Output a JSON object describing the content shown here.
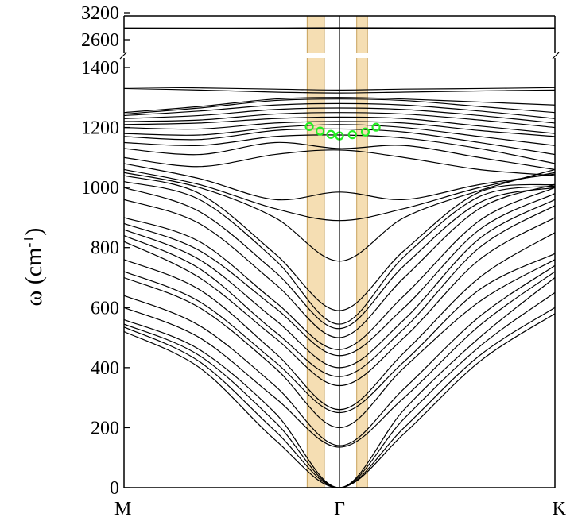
{
  "chart_data": {
    "type": "line",
    "title": "",
    "xlabel": "",
    "ylabel": "ω (cm-1)",
    "ylabel_parts": {
      "main": "ω (cm",
      "sup": "-1",
      "close": ")"
    },
    "x_ticks": [
      "M",
      "Γ",
      "K"
    ],
    "x_path_points": [
      {
        "label": "M",
        "k": 0.0
      },
      {
        "label": "Γ",
        "k": 1.0
      },
      {
        "label": "K",
        "k": 2.0
      }
    ],
    "ylim_lower": [
      0,
      1400
    ],
    "ylim_upper": [
      2600,
      3200
    ],
    "y_ticks_lower": [
      0,
      200,
      400,
      600,
      800,
      1000,
      1200,
      1400
    ],
    "y_ticks_upper": [
      2600,
      3200
    ],
    "y_tick_labels_lower": [
      "0",
      "200",
      "400",
      "600",
      "800",
      "1000",
      "1200",
      "1400"
    ],
    "y_tick_labels_upper": [
      "2600",
      "3200"
    ],
    "broken_axis": true,
    "highlight_bands_k": [
      [
        0.85,
        0.93
      ],
      [
        1.08,
        1.13
      ]
    ],
    "highlight_color": "#f5deb3",
    "band_color": "#000000",
    "marker_color": "#22ee22",
    "markers": [
      {
        "k": 0.86,
        "w": 1203
      },
      {
        "k": 0.91,
        "w": 1188
      },
      {
        "k": 0.96,
        "w": 1177
      },
      {
        "k": 1.0,
        "w": 1172
      },
      {
        "k": 1.06,
        "w": 1176
      },
      {
        "k": 1.12,
        "w": 1185
      },
      {
        "k": 1.17,
        "w": 1201
      }
    ],
    "series": [
      {
        "k": [
          0,
          0.5,
          1,
          1.5,
          2
        ],
        "w": [
          2860,
          2858,
          2865,
          2860,
          2862
        ]
      },
      {
        "k": [
          0,
          0.5,
          1,
          1.5,
          2
        ],
        "w": [
          2845,
          2848,
          2852,
          2850,
          2848
        ]
      },
      {
        "k": [
          0,
          0.35,
          0.7,
          1,
          1.3,
          1.65,
          2
        ],
        "w": [
          520,
          400,
          160,
          0,
          180,
          420,
          580
        ]
      },
      {
        "k": [
          0,
          0.35,
          0.7,
          1,
          1.3,
          1.65,
          2
        ],
        "w": [
          535,
          420,
          190,
          0,
          200,
          440,
          600
        ]
      },
      {
        "k": [
          0,
          0.35,
          0.7,
          1,
          1.3,
          1.65,
          2
        ],
        "w": [
          545,
          440,
          220,
          0,
          230,
          470,
          650
        ]
      },
      {
        "k": [
          0,
          0.35,
          0.7,
          1,
          1.3,
          1.65,
          2
        ],
        "w": [
          560,
          460,
          250,
          0,
          260,
          500,
          700
        ]
      },
      {
        "k": [
          0,
          0.35,
          0.7,
          1,
          1.3,
          1.65,
          2
        ],
        "w": [
          600,
          500,
          300,
          135,
          300,
          540,
          720
        ]
      },
      {
        "k": [
          0,
          0.35,
          0.7,
          1,
          1.3,
          1.65,
          2
        ],
        "w": [
          640,
          540,
          340,
          140,
          330,
          570,
          740
        ]
      },
      {
        "k": [
          0,
          0.35,
          0.7,
          1,
          1.3,
          1.65,
          2
        ],
        "w": [
          700,
          600,
          400,
          200,
          400,
          620,
          760
        ]
      },
      {
        "k": [
          0,
          0.35,
          0.7,
          1,
          1.3,
          1.65,
          2
        ],
        "w": [
          720,
          620,
          420,
          250,
          420,
          660,
          780
        ]
      },
      {
        "k": [
          0,
          0.35,
          0.7,
          1,
          1.3,
          1.65,
          2
        ],
        "w": [
          760,
          660,
          450,
          260,
          450,
          700,
          850
        ]
      },
      {
        "k": [
          0,
          0.35,
          0.7,
          1,
          1.3,
          1.65,
          2
        ],
        "w": [
          820,
          700,
          500,
          340,
          500,
          760,
          900
        ]
      },
      {
        "k": [
          0,
          0.35,
          0.7,
          1,
          1.3,
          1.65,
          2
        ],
        "w": [
          840,
          730,
          520,
          370,
          530,
          800,
          940
        ]
      },
      {
        "k": [
          0,
          0.35,
          0.7,
          1,
          1.3,
          1.65,
          2
        ],
        "w": [
          860,
          760,
          560,
          400,
          560,
          830,
          960
        ]
      },
      {
        "k": [
          0,
          0.35,
          0.7,
          1,
          1.3,
          1.65,
          2
        ],
        "w": [
          880,
          790,
          600,
          440,
          600,
          860,
          980
        ]
      },
      {
        "k": [
          0,
          0.35,
          0.7,
          1,
          1.3,
          1.65,
          2
        ],
        "w": [
          900,
          820,
          620,
          460,
          640,
          890,
          1000
        ]
      },
      {
        "k": [
          0,
          0.35,
          0.7,
          1,
          1.3,
          1.65,
          2
        ],
        "w": [
          960,
          880,
          680,
          500,
          700,
          930,
          1010
        ]
      },
      {
        "k": [
          0,
          0.35,
          0.7,
          1,
          1.3,
          1.65,
          2
        ],
        "w": [
          1000,
          920,
          720,
          530,
          740,
          950,
          1000
        ]
      },
      {
        "k": [
          0,
          0.35,
          0.7,
          1,
          1.3,
          1.65,
          2
        ],
        "w": [
          1020,
          960,
          760,
          545,
          770,
          970,
          1005
        ]
      },
      {
        "k": [
          0,
          0.35,
          0.7,
          1,
          1.3,
          1.65,
          2
        ],
        "w": [
          1040,
          980,
          780,
          590,
          790,
          985,
          1010
        ]
      },
      {
        "k": [
          0,
          0.35,
          0.7,
          1,
          1.3,
          1.65,
          2
        ],
        "w": [
          1050,
          1000,
          900,
          755,
          900,
          990,
          1060
        ]
      },
      {
        "k": [
          0,
          0.35,
          0.7,
          1,
          1.3,
          1.65,
          2
        ],
        "w": [
          1060,
          1010,
          930,
          890,
          930,
          1000,
          1050
        ]
      },
      {
        "k": [
          0,
          0.35,
          0.7,
          1,
          1.3,
          1.65,
          2
        ],
        "w": [
          1080,
          1030,
          960,
          985,
          960,
          1010,
          1045
        ]
      },
      {
        "k": [
          0,
          0.35,
          0.7,
          1,
          1.3,
          1.65,
          2
        ],
        "w": [
          1100,
          1070,
          1110,
          1125,
          1100,
          1060,
          1040
        ]
      },
      {
        "k": [
          0,
          0.35,
          0.7,
          1,
          1.3,
          1.65,
          2
        ],
        "w": [
          1130,
          1110,
          1150,
          1130,
          1140,
          1100,
          1060
        ]
      },
      {
        "k": [
          0,
          0.35,
          0.7,
          1,
          1.3,
          1.65,
          2
        ],
        "w": [
          1150,
          1140,
          1170,
          1175,
          1165,
          1130,
          1080
        ]
      },
      {
        "k": [
          0,
          0.35,
          0.7,
          1,
          1.3,
          1.65,
          2
        ],
        "w": [
          1170,
          1160,
          1190,
          1195,
          1185,
          1150,
          1110
        ]
      },
      {
        "k": [
          0,
          0.35,
          0.7,
          1,
          1.3,
          1.65,
          2
        ],
        "w": [
          1180,
          1175,
          1200,
          1210,
          1200,
          1170,
          1140
        ]
      },
      {
        "k": [
          0,
          0.35,
          0.7,
          1,
          1.3,
          1.65,
          2
        ],
        "w": [
          1200,
          1195,
          1215,
          1220,
          1215,
          1190,
          1170
        ]
      },
      {
        "k": [
          0,
          0.35,
          0.7,
          1,
          1.3,
          1.65,
          2
        ],
        "w": [
          1210,
          1215,
          1230,
          1235,
          1230,
          1205,
          1180
        ]
      },
      {
        "k": [
          0,
          0.35,
          0.7,
          1,
          1.3,
          1.65,
          2
        ],
        "w": [
          1220,
          1225,
          1245,
          1250,
          1245,
          1225,
          1200
        ]
      },
      {
        "k": [
          0,
          0.35,
          0.7,
          1,
          1.3,
          1.65,
          2
        ],
        "w": [
          1230,
          1240,
          1260,
          1265,
          1260,
          1240,
          1215
        ]
      },
      {
        "k": [
          0,
          0.35,
          0.7,
          1,
          1.3,
          1.65,
          2
        ],
        "w": [
          1240,
          1255,
          1275,
          1280,
          1275,
          1255,
          1230
        ]
      },
      {
        "k": [
          0,
          0.35,
          0.7,
          1,
          1.3,
          1.65,
          2
        ],
        "w": [
          1245,
          1265,
          1290,
          1295,
          1290,
          1270,
          1250
        ]
      },
      {
        "k": [
          0,
          0.35,
          0.7,
          1,
          1.3,
          1.65,
          2
        ],
        "w": [
          1250,
          1270,
          1295,
          1300,
          1295,
          1285,
          1275
        ]
      },
      {
        "k": [
          0,
          0.35,
          0.7,
          1,
          1.3,
          1.65,
          2
        ],
        "w": [
          1330,
          1325,
          1318,
          1315,
          1318,
          1322,
          1325
        ]
      },
      {
        "k": [
          0,
          0.35,
          0.7,
          1,
          1.3,
          1.65,
          2
        ],
        "w": [
          1335,
          1332,
          1328,
          1325,
          1328,
          1330,
          1333
        ]
      }
    ]
  }
}
